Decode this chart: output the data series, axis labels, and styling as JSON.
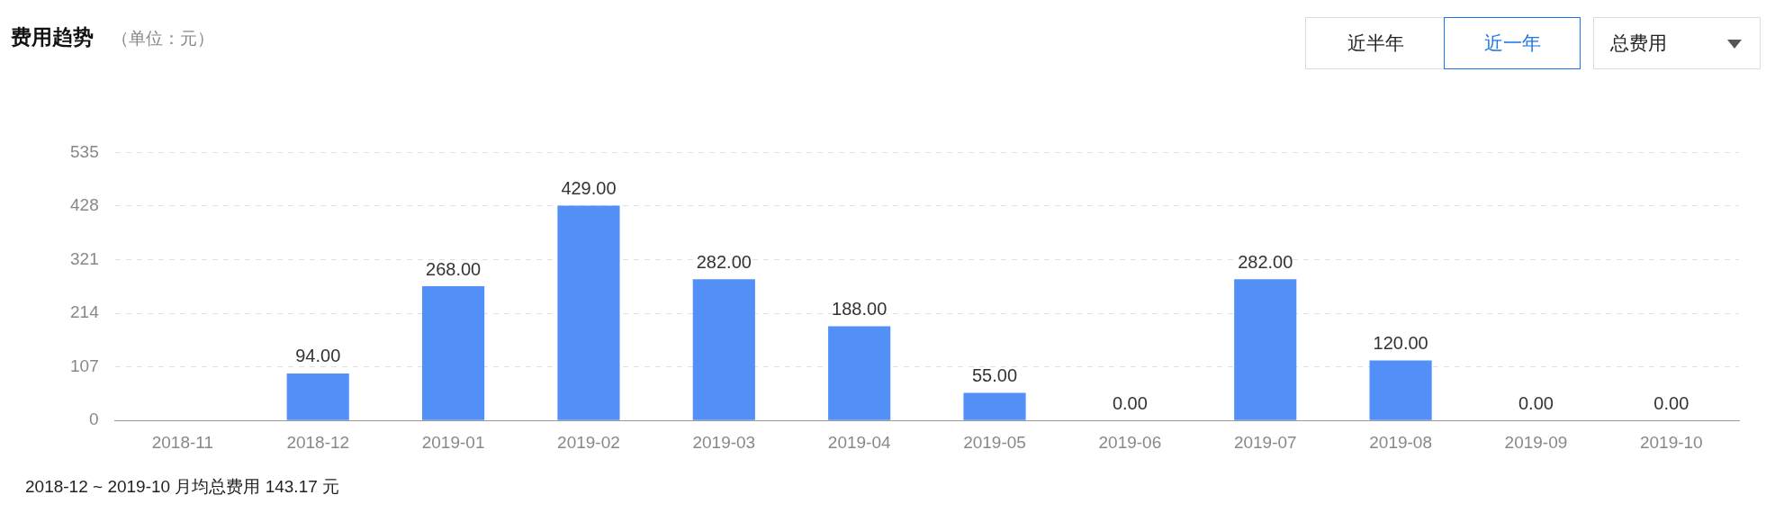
{
  "chart_data": {
    "type": "bar",
    "title": "费用趋势",
    "subtitle": "（单位：元）",
    "annotations": [
      "近半年",
      "近一年",
      "总费用",
      "2018-12 ~ 2019-10 月均总费用 143.17 元"
    ],
    "categories": [
      "2018-11",
      "2018-12",
      "2019-01",
      "2019-02",
      "2019-03",
      "2019-04",
      "2019-05",
      "2019-06",
      "2019-07",
      "2019-08",
      "2019-09",
      "2019-10"
    ],
    "values": [
      null,
      94,
      268,
      429,
      282,
      188,
      55,
      0,
      282,
      120,
      0,
      0
    ],
    "value_labels": [
      null,
      "94.00",
      "268.00",
      "429.00",
      "282.00",
      "188.00",
      "55.00",
      "0.00",
      "282.00",
      "120.00",
      "0.00",
      "0.00"
    ],
    "color": "#5290f7",
    "ylim": [
      0,
      535
    ],
    "yticks": [
      0,
      107,
      214,
      321,
      428,
      535
    ],
    "grid": "y",
    "legend": false
  }
}
